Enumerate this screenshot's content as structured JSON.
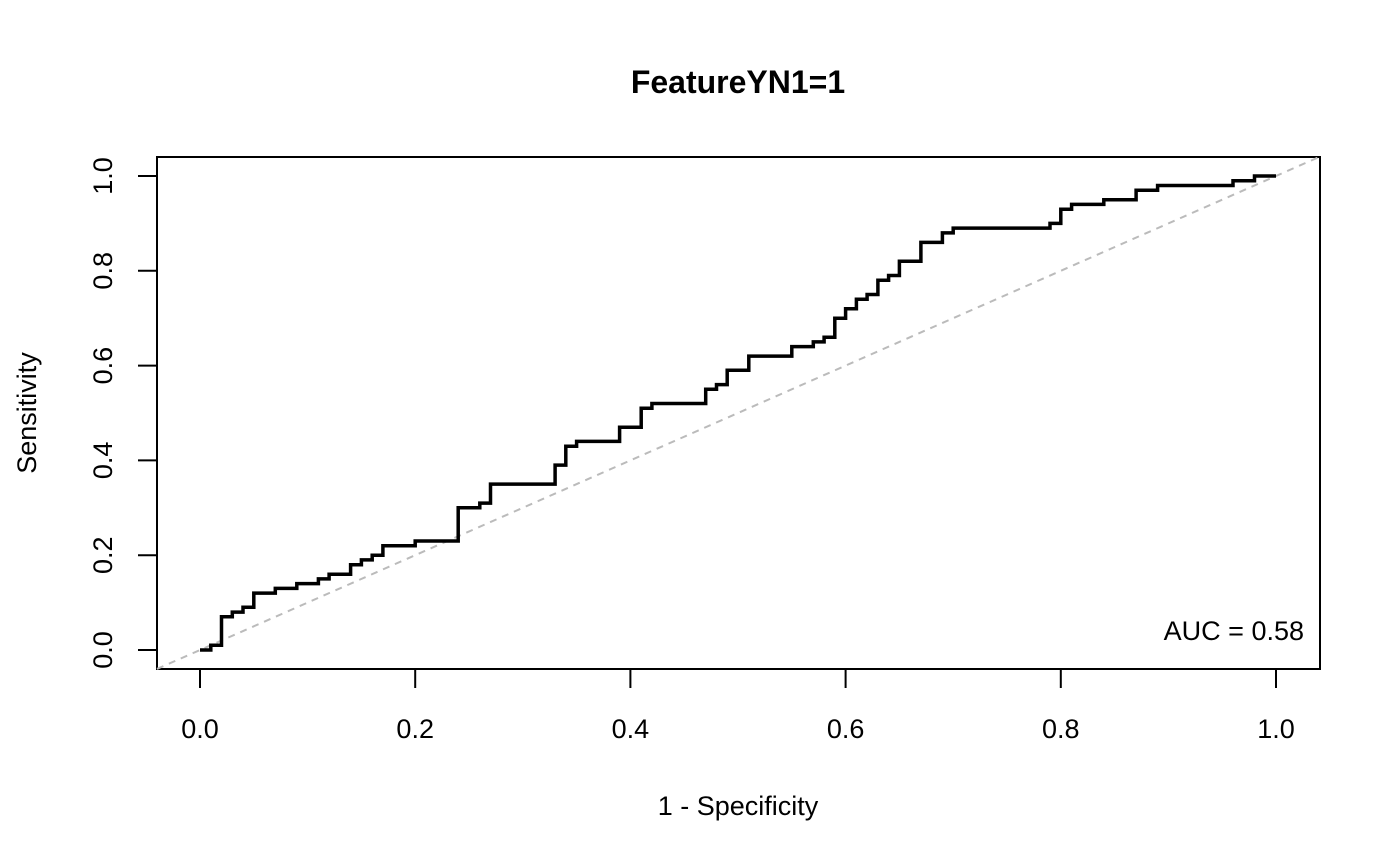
{
  "chart_data": {
    "type": "line",
    "title": "FeatureYN1=1",
    "xlabel": "1 - Specificity",
    "ylabel": "Sensitivity",
    "xlim": [
      0,
      1
    ],
    "ylim": [
      0,
      1
    ],
    "xticks": [
      "0.0",
      "0.2",
      "0.4",
      "0.6",
      "0.8",
      "1.0"
    ],
    "yticks": [
      "0.0",
      "0.2",
      "0.4",
      "0.6",
      "0.8",
      "1.0"
    ],
    "annotation": "AUC =  0.58",
    "grid": false,
    "reference_line": {
      "from": [
        0,
        0
      ],
      "to": [
        1,
        1
      ],
      "style": "dashed",
      "color": "#bbbbbb"
    },
    "series": [
      {
        "color": "#000000",
        "x": [
          0,
          0.01,
          0.01,
          0.02,
          0.02,
          0.03,
          0.03,
          0.04,
          0.04,
          0.05,
          0.05,
          0.07,
          0.07,
          0.09,
          0.09,
          0.11,
          0.11,
          0.12,
          0.12,
          0.14,
          0.14,
          0.15,
          0.15,
          0.16,
          0.16,
          0.17,
          0.17,
          0.2,
          0.2,
          0.24,
          0.24,
          0.26,
          0.26,
          0.27,
          0.27,
          0.33,
          0.33,
          0.34,
          0.34,
          0.35,
          0.35,
          0.39,
          0.39,
          0.41,
          0.41,
          0.42,
          0.42,
          0.47,
          0.47,
          0.48,
          0.48,
          0.49,
          0.49,
          0.51,
          0.51,
          0.55,
          0.55,
          0.57,
          0.57,
          0.58,
          0.58,
          0.59,
          0.59,
          0.6,
          0.6,
          0.61,
          0.61,
          0.62,
          0.62,
          0.63,
          0.63,
          0.64,
          0.64,
          0.65,
          0.65,
          0.67,
          0.67,
          0.69,
          0.69,
          0.7,
          0.7,
          0.79,
          0.79,
          0.8,
          0.8,
          0.81,
          0.81,
          0.84,
          0.84,
          0.87,
          0.87,
          0.89,
          0.89,
          0.96,
          0.96,
          0.98,
          0.98,
          1
        ],
        "y": [
          0,
          0,
          0.01,
          0.01,
          0.07,
          0.07,
          0.08,
          0.08,
          0.09,
          0.09,
          0.12,
          0.12,
          0.13,
          0.13,
          0.14,
          0.14,
          0.15,
          0.15,
          0.16,
          0.16,
          0.18,
          0.18,
          0.19,
          0.19,
          0.2,
          0.2,
          0.22,
          0.22,
          0.23,
          0.23,
          0.3,
          0.3,
          0.31,
          0.31,
          0.35,
          0.35,
          0.39,
          0.39,
          0.43,
          0.43,
          0.44,
          0.44,
          0.47,
          0.47,
          0.51,
          0.51,
          0.52,
          0.52,
          0.55,
          0.55,
          0.56,
          0.56,
          0.59,
          0.59,
          0.62,
          0.62,
          0.64,
          0.64,
          0.65,
          0.65,
          0.66,
          0.66,
          0.7,
          0.7,
          0.72,
          0.72,
          0.74,
          0.74,
          0.75,
          0.75,
          0.78,
          0.78,
          0.79,
          0.79,
          0.82,
          0.82,
          0.86,
          0.86,
          0.88,
          0.88,
          0.89,
          0.89,
          0.9,
          0.9,
          0.93,
          0.93,
          0.94,
          0.94,
          0.95,
          0.95,
          0.97,
          0.97,
          0.98,
          0.98,
          0.99,
          0.99,
          1,
          1
        ]
      }
    ]
  }
}
